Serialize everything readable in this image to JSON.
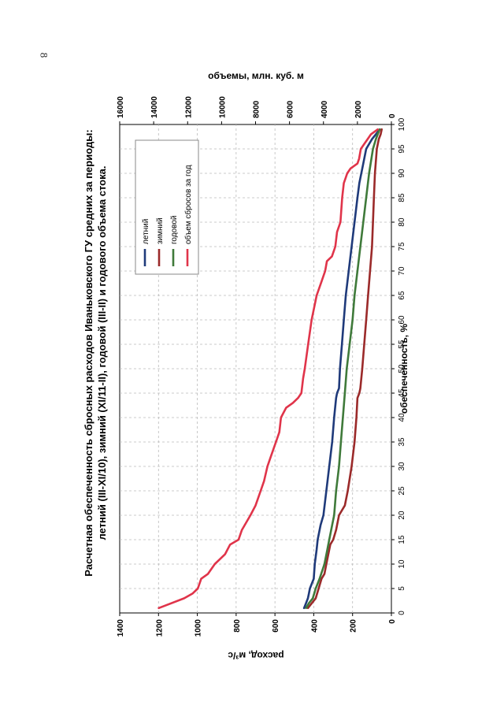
{
  "page": {
    "number": "8"
  },
  "colors": {
    "summer": "#1f3a7a",
    "winter": "#9b2a2a",
    "annual": "#3f7a3a",
    "volume": "#e0344a",
    "grid": "#bbbbbb",
    "axis": "#000000"
  },
  "chart_data": {
    "type": "line",
    "title_line1": "Расчетная обеспеченность сбросных расходов Иваньковского ГУ средних за периоды:",
    "title_line2": "летний (III-XI/10), зимний (XI/11-II), годовой (III-II) и годового объема стока.",
    "xlabel": "обеспеченность, %",
    "ylabel_left": "расход, м³/с",
    "ylabel_right": "объемы, млн. куб. м",
    "xlim": [
      0,
      100
    ],
    "ylim_left": [
      0,
      1400
    ],
    "ylim_right": [
      0,
      16000
    ],
    "x_ticks": [
      "0",
      "5",
      "10",
      "15",
      "20",
      "25",
      "30",
      "35",
      "40",
      "45",
      "50",
      "55",
      "60",
      "65",
      "70",
      "75",
      "80",
      "85",
      "90",
      "95",
      "100"
    ],
    "y_left_ticks": [
      "0",
      "200",
      "400",
      "600",
      "800",
      "1000",
      "1200",
      "1400"
    ],
    "y_right_ticks": [
      "0",
      "2000",
      "4000",
      "6000",
      "8000",
      "10000",
      "12000",
      "14000",
      "16000"
    ],
    "legend": [
      "летний",
      "зимний",
      "годовой",
      "объем сбросов за год"
    ],
    "series": [
      {
        "name": "летний",
        "axis": "left",
        "x": [
          1,
          2,
          3,
          4,
          5,
          7,
          10,
          13,
          15,
          18,
          20,
          25,
          30,
          35,
          40,
          44,
          45,
          46,
          50,
          55,
          60,
          65,
          70,
          75,
          80,
          85,
          88,
          90,
          92,
          95,
          97,
          98,
          99
        ],
        "y": [
          450,
          440,
          430,
          425,
          420,
          400,
          395,
          385,
          380,
          365,
          350,
          335,
          320,
          305,
          295,
          285,
          280,
          270,
          265,
          255,
          245,
          235,
          220,
          205,
          190,
          175,
          165,
          155,
          145,
          130,
          100,
          80,
          60
        ]
      },
      {
        "name": "зимний",
        "axis": "left",
        "x": [
          1,
          2,
          3,
          5,
          7,
          8,
          10,
          12,
          14,
          15,
          17,
          20,
          22,
          25,
          30,
          35,
          40,
          44,
          45,
          46,
          50,
          55,
          60,
          65,
          70,
          75,
          80,
          85,
          90,
          95,
          97,
          98,
          99
        ],
        "y": [
          430,
          410,
          390,
          375,
          360,
          345,
          335,
          325,
          315,
          300,
          285,
          270,
          240,
          225,
          205,
          190,
          180,
          175,
          165,
          160,
          150,
          140,
          130,
          120,
          110,
          100,
          95,
          90,
          85,
          75,
          65,
          55,
          50
        ]
      },
      {
        "name": "годовой",
        "axis": "left",
        "x": [
          1,
          2,
          3,
          5,
          7,
          10,
          13,
          15,
          18,
          20,
          25,
          30,
          35,
          40,
          45,
          50,
          55,
          60,
          65,
          70,
          75,
          80,
          85,
          90,
          95,
          97,
          98,
          99
        ],
        "y": [
          440,
          425,
          405,
          390,
          370,
          345,
          330,
          320,
          305,
          295,
          285,
          270,
          260,
          250,
          240,
          230,
          215,
          200,
          190,
          175,
          160,
          145,
          130,
          115,
          95,
          80,
          70,
          60
        ]
      },
      {
        "name": "объем сбросов за год",
        "axis": "right",
        "x": [
          1,
          3,
          4,
          5,
          7,
          8,
          10,
          12,
          14,
          15,
          17,
          20,
          22,
          25,
          27,
          30,
          32,
          35,
          37,
          40,
          42,
          43,
          44,
          45,
          48,
          50,
          55,
          60,
          65,
          68,
          70,
          72,
          73,
          75,
          78,
          80,
          85,
          88,
          89,
          90,
          91,
          92,
          93,
          95,
          96,
          97,
          98,
          99
        ],
        "y": [
          13700,
          12200,
          11700,
          11400,
          11200,
          10800,
          10400,
          9800,
          9500,
          9000,
          8800,
          8300,
          8000,
          7700,
          7500,
          7300,
          7100,
          6800,
          6600,
          6500,
          6200,
          5800,
          5500,
          5300,
          5200,
          5100,
          4900,
          4700,
          4400,
          4100,
          3900,
          3800,
          3500,
          3300,
          3200,
          3000,
          2900,
          2800,
          2700,
          2600,
          2400,
          2000,
          1900,
          1800,
          1600,
          1400,
          1200,
          800
        ]
      }
    ]
  }
}
